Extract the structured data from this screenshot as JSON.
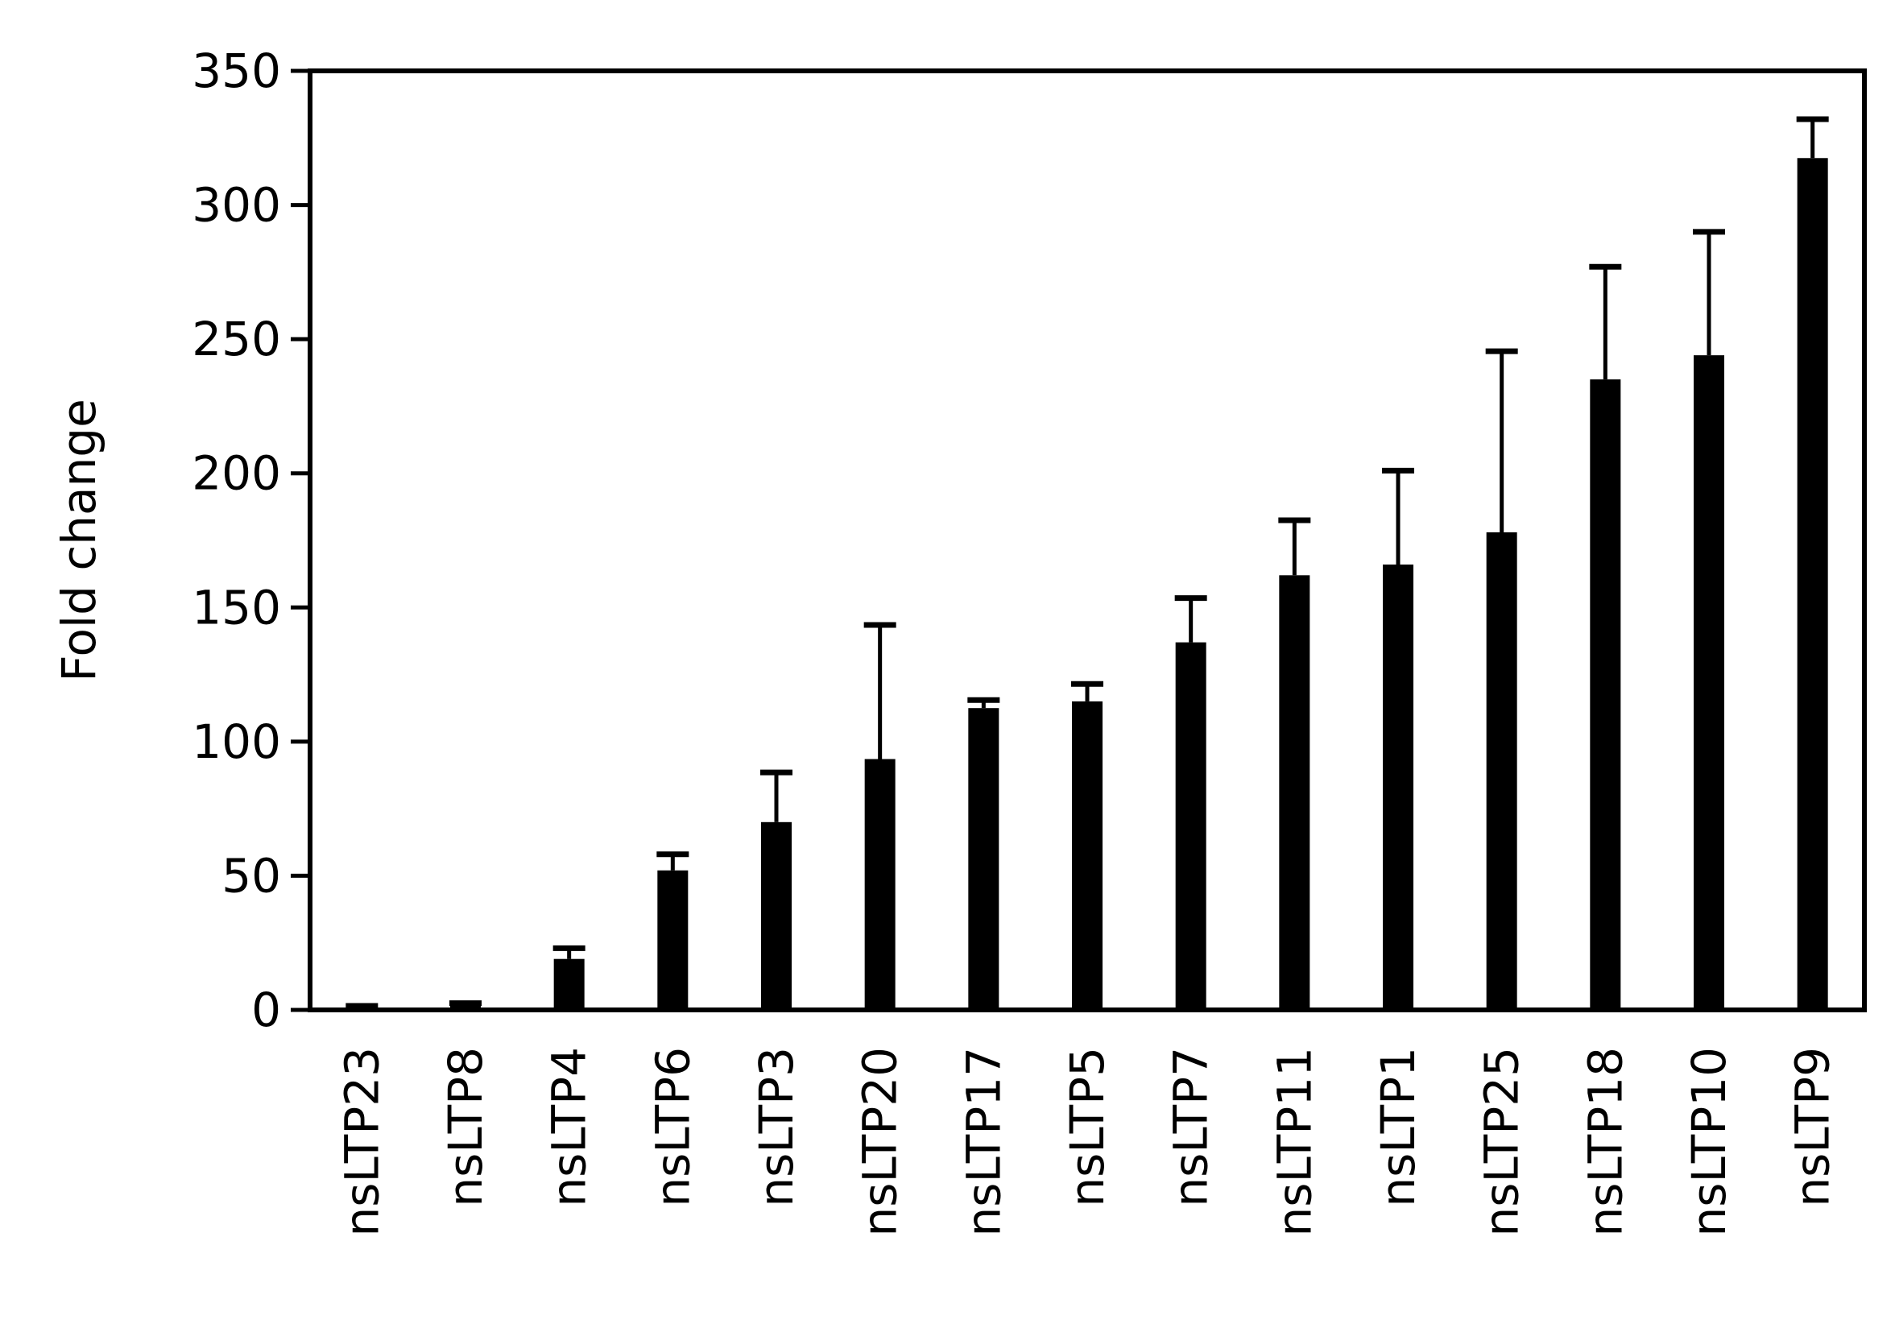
{
  "chart_data": {
    "type": "bar",
    "title": "",
    "xlabel": "",
    "ylabel": "Fold change",
    "ylim": [
      0,
      350
    ],
    "yticks": [
      0,
      50,
      100,
      150,
      200,
      250,
      300,
      350
    ],
    "grid": false,
    "bar_color": "#000000",
    "categories": [
      "nsLTP23",
      "nsLTP8",
      "nsLTP4",
      "nsLTP6",
      "nsLTP3",
      "nsLTP20",
      "nsLTP17",
      "nsLTP5",
      "nsLTP7",
      "nsLTP11",
      "nsLTP1",
      "nsLTP25",
      "nsLTP18",
      "nsLTP10",
      "nsLTP9"
    ],
    "values": [
      1,
      2,
      19,
      52,
      70,
      93.5,
      112.5,
      115,
      137,
      162,
      166,
      178,
      235,
      244,
      317.5
    ],
    "error_upper": [
      0.5,
      0.5,
      4,
      6,
      18.5,
      50,
      3,
      6.5,
      16.5,
      20.5,
      35,
      67.5,
      42,
      46,
      14.5
    ]
  }
}
